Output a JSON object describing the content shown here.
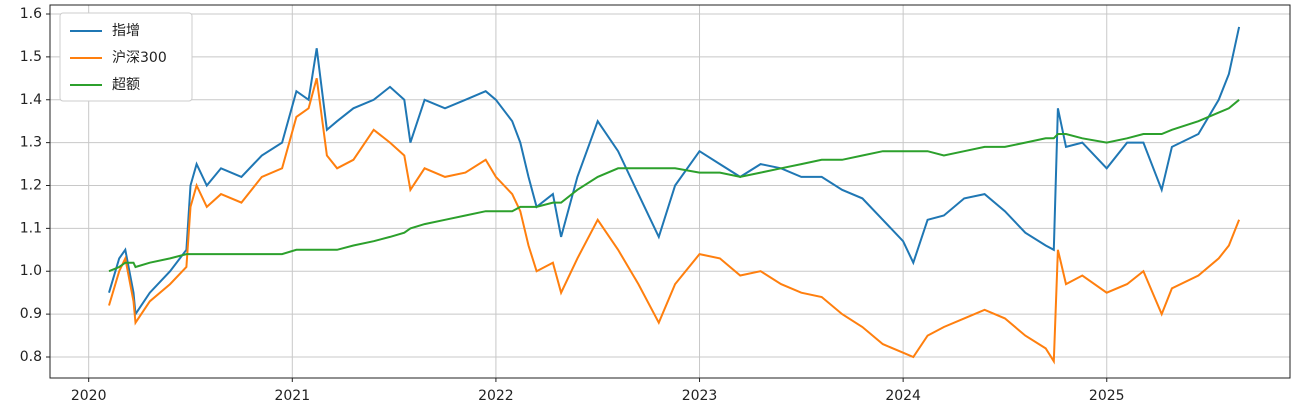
{
  "chart_data": {
    "type": "line",
    "grid": true,
    "legend": "upper left",
    "xlim": [
      2019.81,
      2025.9
    ],
    "xticks": [
      2020,
      2021,
      2022,
      2023,
      2024,
      2025
    ],
    "ylim": [
      0.751,
      1.621
    ],
    "yticks": [
      0.8,
      0.9,
      1.0,
      1.1,
      1.2,
      1.3,
      1.4,
      1.5,
      1.6
    ],
    "x": [
      2020.1,
      2020.15,
      2020.18,
      2020.22,
      2020.23,
      2020.3,
      2020.4,
      2020.48,
      2020.5,
      2020.53,
      2020.58,
      2020.65,
      2020.75,
      2020.85,
      2020.95,
      2021.02,
      2021.08,
      2021.12,
      2021.17,
      2021.22,
      2021.3,
      2021.4,
      2021.48,
      2021.55,
      2021.58,
      2021.65,
      2021.75,
      2021.85,
      2021.95,
      2022.0,
      2022.08,
      2022.12,
      2022.16,
      2022.2,
      2022.28,
      2022.32,
      2022.4,
      2022.5,
      2022.6,
      2022.7,
      2022.8,
      2022.88,
      2023.0,
      2023.1,
      2023.2,
      2023.3,
      2023.4,
      2023.5,
      2023.6,
      2023.7,
      2023.8,
      2023.9,
      2024.0,
      2024.05,
      2024.12,
      2024.2,
      2024.3,
      2024.4,
      2024.5,
      2024.6,
      2024.7,
      2024.74,
      2024.76,
      2024.8,
      2024.88,
      2025.0,
      2025.1,
      2025.18,
      2025.27,
      2025.32,
      2025.45,
      2025.55,
      2025.6,
      2025.65
    ],
    "series": [
      {
        "name": "指增",
        "color": "#1f77b4",
        "values": [
          0.95,
          1.03,
          1.05,
          0.95,
          0.9,
          0.95,
          1.0,
          1.05,
          1.2,
          1.25,
          1.2,
          1.24,
          1.22,
          1.27,
          1.3,
          1.42,
          1.4,
          1.52,
          1.33,
          1.35,
          1.38,
          1.4,
          1.43,
          1.4,
          1.3,
          1.4,
          1.38,
          1.4,
          1.42,
          1.4,
          1.35,
          1.3,
          1.22,
          1.15,
          1.18,
          1.08,
          1.22,
          1.35,
          1.28,
          1.18,
          1.08,
          1.2,
          1.28,
          1.25,
          1.22,
          1.25,
          1.24,
          1.22,
          1.22,
          1.19,
          1.17,
          1.12,
          1.07,
          1.02,
          1.12,
          1.13,
          1.17,
          1.18,
          1.14,
          1.09,
          1.06,
          1.05,
          1.38,
          1.29,
          1.3,
          1.24,
          1.3,
          1.3,
          1.19,
          1.29,
          1.32,
          1.4,
          1.46,
          1.57
        ]
      },
      {
        "name": "沪深300",
        "color": "#ff7f0e",
        "values": [
          0.92,
          1.0,
          1.03,
          0.93,
          0.88,
          0.93,
          0.97,
          1.01,
          1.15,
          1.2,
          1.15,
          1.18,
          1.16,
          1.22,
          1.24,
          1.36,
          1.38,
          1.45,
          1.27,
          1.24,
          1.26,
          1.33,
          1.3,
          1.27,
          1.19,
          1.24,
          1.22,
          1.23,
          1.26,
          1.22,
          1.18,
          1.14,
          1.06,
          1.0,
          1.02,
          0.95,
          1.03,
          1.12,
          1.05,
          0.97,
          0.88,
          0.97,
          1.04,
          1.03,
          0.99,
          1.0,
          0.97,
          0.95,
          0.94,
          0.9,
          0.87,
          0.83,
          0.81,
          0.8,
          0.85,
          0.87,
          0.89,
          0.91,
          0.89,
          0.85,
          0.82,
          0.79,
          1.05,
          0.97,
          0.99,
          0.95,
          0.97,
          1.0,
          0.9,
          0.96,
          0.99,
          1.03,
          1.06,
          1.12
        ]
      },
      {
        "name": "超额",
        "color": "#2ca02c",
        "values": [
          1.0,
          1.01,
          1.02,
          1.02,
          1.01,
          1.02,
          1.03,
          1.04,
          1.04,
          1.04,
          1.04,
          1.04,
          1.04,
          1.04,
          1.04,
          1.05,
          1.05,
          1.05,
          1.05,
          1.05,
          1.06,
          1.07,
          1.08,
          1.09,
          1.1,
          1.11,
          1.12,
          1.13,
          1.14,
          1.14,
          1.14,
          1.15,
          1.15,
          1.15,
          1.16,
          1.16,
          1.19,
          1.22,
          1.24,
          1.24,
          1.24,
          1.24,
          1.23,
          1.23,
          1.22,
          1.23,
          1.24,
          1.25,
          1.26,
          1.26,
          1.27,
          1.28,
          1.28,
          1.28,
          1.28,
          1.27,
          1.28,
          1.29,
          1.29,
          1.3,
          1.31,
          1.31,
          1.32,
          1.32,
          1.31,
          1.3,
          1.31,
          1.32,
          1.32,
          1.33,
          1.35,
          1.37,
          1.38,
          1.4
        ]
      }
    ]
  }
}
